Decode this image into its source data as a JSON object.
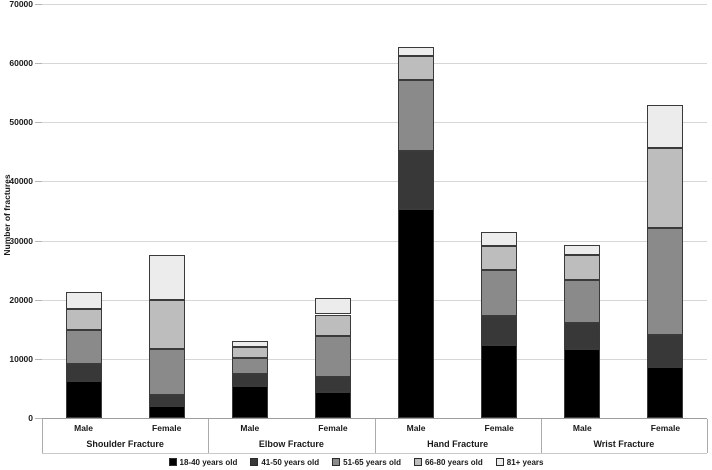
{
  "chart_data": {
    "type": "bar",
    "variant": "stacked",
    "title": "",
    "ylabel": "Number of fractures",
    "xlabel": "",
    "ylim": [
      0,
      70000
    ],
    "ytick_interval": 10000,
    "ytick_labels": [
      "0",
      "10000",
      "20000",
      "30000",
      "40000",
      "50000",
      "60000",
      "70000"
    ],
    "grid": true,
    "legend_position": "bottom",
    "groups": [
      "Shoulder Fracture",
      "Elbow Fracture",
      "Hand Fracture",
      "Wrist Fracture"
    ],
    "subcategories": [
      "Male",
      "Female"
    ],
    "bar_labels": [
      "Male",
      "Female",
      "Male",
      "Female",
      "Male",
      "Female",
      "Male",
      "Female"
    ],
    "series": [
      {
        "name": "18-40 years old",
        "color": "#000000",
        "values": [
          6200,
          2000,
          5400,
          4400,
          35400,
          12400,
          11600,
          8700
        ]
      },
      {
        "name": "41-50 years old",
        "color": "#383838",
        "values": [
          3000,
          1900,
          2100,
          2600,
          9800,
          4800,
          4500,
          5300
        ]
      },
      {
        "name": "51-65 years old",
        "color": "#8a8a8a",
        "values": [
          5600,
          7800,
          2600,
          6800,
          12000,
          7900,
          7300,
          18200
        ]
      },
      {
        "name": "66-80 years old",
        "color": "#bdbdbd",
        "values": [
          3700,
          8300,
          1900,
          3700,
          4000,
          4000,
          4100,
          13400
        ]
      },
      {
        "name": "81+ years",
        "color": "#ececec",
        "values": [
          2800,
          7500,
          1000,
          2800,
          1500,
          2400,
          1700,
          7400
        ]
      }
    ],
    "totals": [
      21300,
      27500,
      13000,
      20300,
      62700,
      31500,
      29200,
      53000
    ]
  },
  "colors": {
    "gridline": "#d6d6d6",
    "axis_line": "#9e9e9e",
    "segment_border": "#3a3a3a",
    "text": "#1a1a1a"
  }
}
